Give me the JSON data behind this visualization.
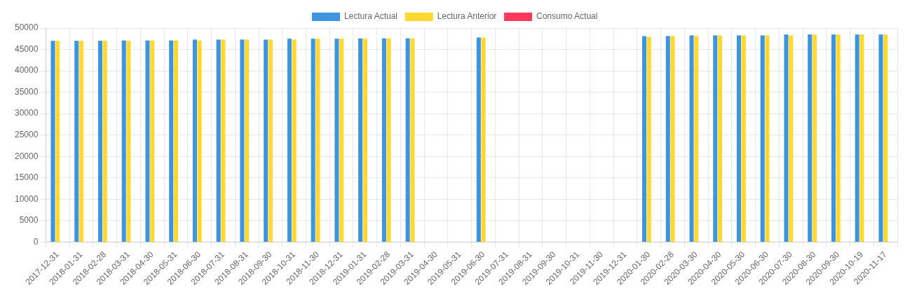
{
  "chart_data": {
    "type": "bar",
    "categories": [
      "2017-12-31",
      "2018-01-31",
      "2018-02-28",
      "2018-03-31",
      "2018-04-30",
      "2018-05-31",
      "2018-06-30",
      "2018-07-31",
      "2018-08-31",
      "2018-09-30",
      "2018-10-31",
      "2018-11-30",
      "2018-12-31",
      "2019-01-31",
      "2019-02-28",
      "2019-03-31",
      "2019-04-30",
      "2019-05-31",
      "2019-06-30",
      "2019-07-31",
      "2019-08-31",
      "2019-09-30",
      "2019-10-31",
      "2019-11-30",
      "2019-12-31",
      "2020-01-30",
      "2020-02-28",
      "2020-03-30",
      "2020-04-30",
      "2020-05-30",
      "2020-06-30",
      "2020-07-30",
      "2020-08-30",
      "2020-09-30",
      "2020-10-19",
      "2020-11-17"
    ],
    "series": [
      {
        "name": "Lectura Actual",
        "color": "#3e95dd",
        "values": [
          47000,
          47000,
          47000,
          47100,
          47100,
          47100,
          47300,
          47300,
          47300,
          47300,
          47500,
          47500,
          47500,
          47600,
          47600,
          47600,
          0,
          0,
          47800,
          0,
          0,
          0,
          0,
          0,
          0,
          48100,
          48100,
          48300,
          48300,
          48300,
          48300,
          48500,
          48500,
          48500,
          48500,
          48500
        ]
      },
      {
        "name": "Lectura Anterior",
        "color": "#ffd92f",
        "values": [
          47000,
          47000,
          47000,
          47000,
          47100,
          47100,
          47100,
          47300,
          47300,
          47300,
          47300,
          47500,
          47500,
          47500,
          47600,
          47600,
          0,
          0,
          47800,
          0,
          0,
          0,
          0,
          0,
          0,
          47900,
          48100,
          48100,
          48300,
          48300,
          48300,
          48300,
          48500,
          48500,
          48500,
          48500
        ]
      },
      {
        "name": "Consumo Actual",
        "color": "#ff3860",
        "values": [
          0,
          0,
          0,
          0,
          0,
          0,
          0,
          0,
          0,
          0,
          0,
          0,
          0,
          0,
          0,
          0,
          0,
          0,
          0,
          0,
          0,
          0,
          0,
          0,
          0,
          0,
          0,
          0,
          0,
          0,
          0,
          0,
          0,
          0,
          0,
          0
        ]
      }
    ],
    "ylim": [
      0,
      50000
    ],
    "yticks": [
      0,
      5000,
      10000,
      15000,
      20000,
      25000,
      30000,
      35000,
      40000,
      45000,
      50000
    ],
    "grid": true,
    "legend": "top"
  }
}
